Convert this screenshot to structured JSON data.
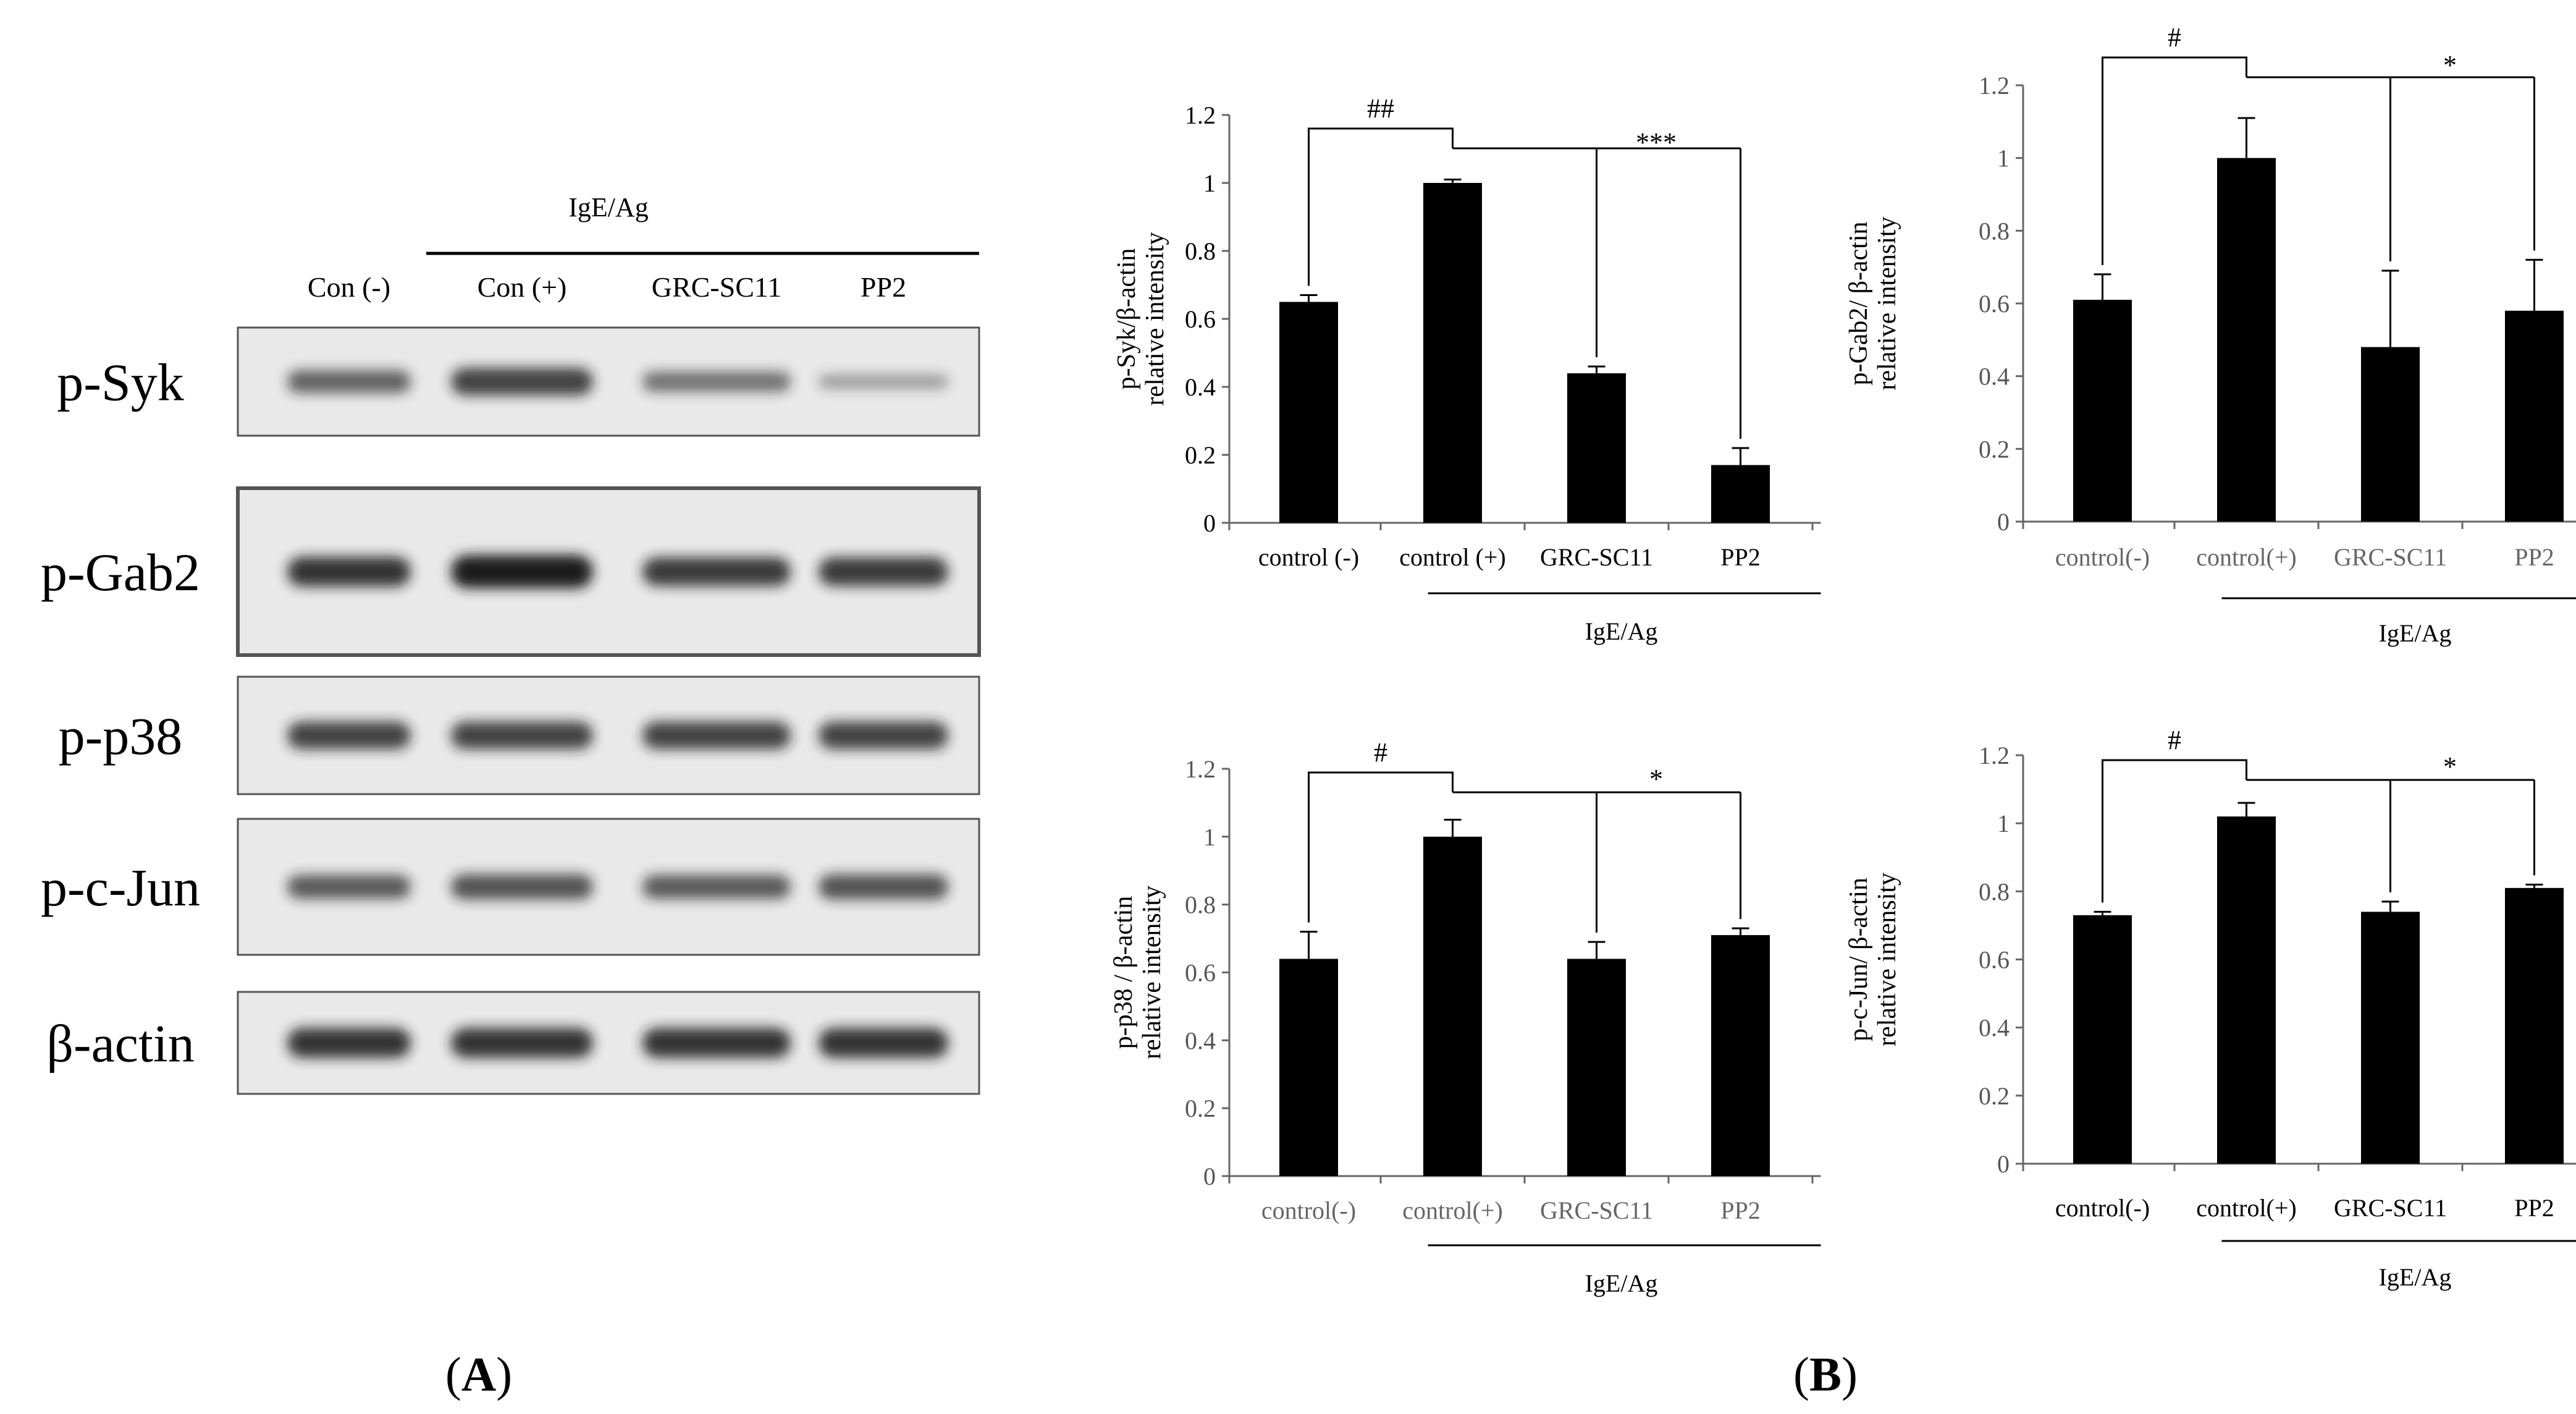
{
  "figure": {
    "panel_a_label": "A",
    "panel_b_label": "B"
  },
  "blot": {
    "group_label": "IgE/Ag",
    "lanes": [
      "Con (-)",
      "Con (+)",
      "GRC-SC11",
      "PP2"
    ],
    "rows": [
      {
        "label": "p-Syk",
        "intensity": [
          0.55,
          0.75,
          0.45,
          0.18
        ]
      },
      {
        "label": "p-Gab2",
        "intensity": [
          0.85,
          1.0,
          0.8,
          0.8
        ]
      },
      {
        "label": "p-p38",
        "intensity": [
          0.75,
          0.75,
          0.75,
          0.75
        ]
      },
      {
        "label": "p-c-Jun",
        "intensity": [
          0.6,
          0.65,
          0.6,
          0.65
        ]
      },
      {
        "label": "β-actin",
        "intensity": [
          0.85,
          0.85,
          0.85,
          0.85
        ]
      }
    ],
    "colors": {
      "membrane": "#e9e9e9",
      "band": "#1a1a1a",
      "border": "#555555"
    }
  },
  "chart_data": [
    {
      "type": "bar",
      "categories": [
        "control (-)",
        "control (+)",
        "GRC-SC11",
        "PP2"
      ],
      "values": [
        0.65,
        1.0,
        0.44,
        0.17
      ],
      "errors": [
        0.02,
        0.01,
        0.02,
        0.05
      ],
      "ylabel": [
        "p-Syk/β-actin",
        "relative intensity"
      ],
      "ylim": [
        0,
        1.2
      ],
      "yticks": [
        "0",
        "0.2",
        "0.4",
        "0.6",
        "0.8",
        "1",
        "1.2"
      ],
      "group_label": "IgE/Ag",
      "significance": {
        "left": "##",
        "right": "***"
      },
      "tick_color": "#000000",
      "category_color": "#000000"
    },
    {
      "type": "bar",
      "categories": [
        "control(-)",
        "control(+)",
        "GRC-SC11",
        "PP2"
      ],
      "values": [
        0.61,
        1.0,
        0.48,
        0.58
      ],
      "errors": [
        0.07,
        0.11,
        0.21,
        0.14
      ],
      "ylabel": [
        "p-Gab2/ β-actin",
        "relative intensity"
      ],
      "ylim": [
        0,
        1.2
      ],
      "yticks": [
        "0",
        "0.2",
        "0.4",
        "0.6",
        "0.8",
        "1",
        "1.2"
      ],
      "group_label": "IgE/Ag",
      "significance": {
        "left": "#",
        "right": "*"
      },
      "tick_color": "#555555",
      "category_color": "#666666"
    },
    {
      "type": "bar",
      "categories": [
        "control(-)",
        "control(+)",
        "GRC-SC11",
        "PP2"
      ],
      "values": [
        0.64,
        1.0,
        0.64,
        0.71
      ],
      "errors": [
        0.08,
        0.05,
        0.05,
        0.02
      ],
      "ylabel": [
        "p-p38 / β-actin",
        "relative intensity"
      ],
      "ylim": [
        0,
        1.2
      ],
      "yticks": [
        "0",
        "0.2",
        "0.4",
        "0.6",
        "0.8",
        "1",
        "1.2"
      ],
      "group_label": "IgE/Ag",
      "significance": {
        "left": "#",
        "right": "*"
      },
      "tick_color": "#555555",
      "category_color": "#666666"
    },
    {
      "type": "bar",
      "categories": [
        "control(-)",
        "control(+)",
        "GRC-SC11",
        "PP2"
      ],
      "values": [
        0.73,
        1.02,
        0.74,
        0.81
      ],
      "errors": [
        0.01,
        0.04,
        0.03,
        0.01
      ],
      "ylabel": [
        "p-c-Jun/ β-actin",
        "relative intensity"
      ],
      "ylim": [
        0,
        1.2
      ],
      "yticks": [
        "0",
        "0.2",
        "0.4",
        "0.6",
        "0.8",
        "1",
        "1.2"
      ],
      "group_label": "IgE/Ag",
      "significance": {
        "left": "#",
        "right": "*"
      },
      "tick_color": "#555555",
      "category_color": "#000000"
    }
  ]
}
